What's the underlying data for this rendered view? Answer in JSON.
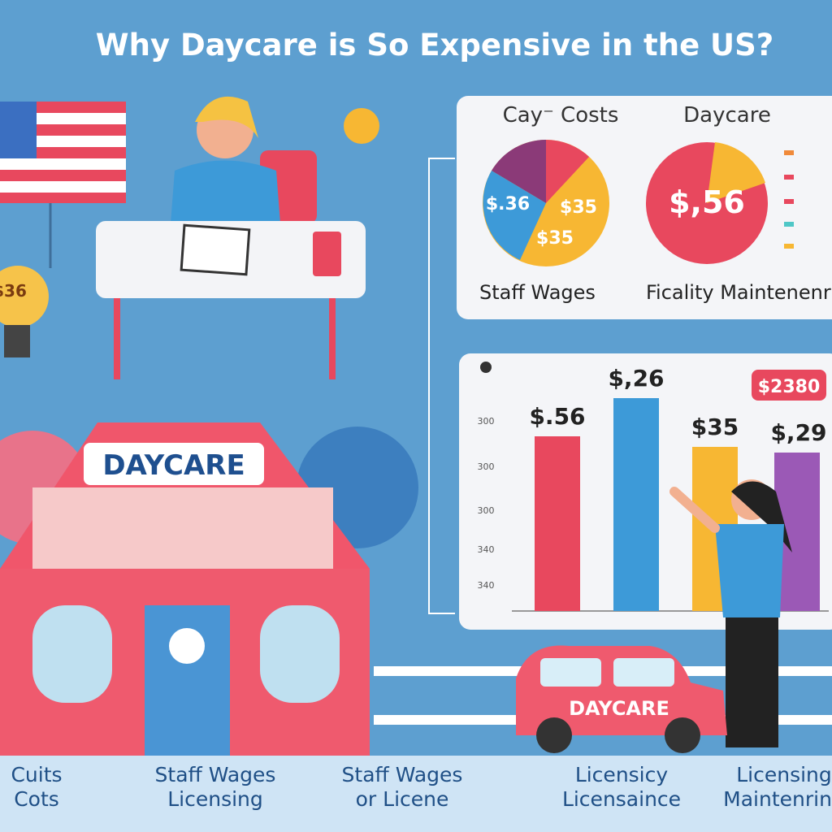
{
  "header": {
    "title": "Why Daycare is So Expensive in the US?"
  },
  "pie_panel": {
    "headings": [
      "Cay⁻ Costs",
      "Daycare"
    ],
    "pie_labels": [
      "$.36",
      "$35",
      "$35",
      "$,56"
    ],
    "captions": [
      "Staff Wages",
      "Ficality Maintenenr"
    ]
  },
  "bar_panel": {
    "axis_labels": [
      "300",
      "300",
      "300",
      "340",
      "340"
    ],
    "bar_labels": [
      "$.56",
      "$,26",
      "$35",
      "$,29"
    ],
    "callout": "$2380"
  },
  "illustration": {
    "bulb_label": "$36",
    "house_sign": "DAYCARE",
    "car_sign": "DAYCARE"
  },
  "footer": {
    "labels": [
      [
        "Cuits",
        "Cots"
      ],
      [
        "Staff Wages",
        "Licensing"
      ],
      [
        "Staff Wages",
        "or Licene"
      ],
      [
        "Licensicy",
        "Licensaince"
      ],
      [
        "Licensing",
        "Maintenring"
      ]
    ]
  }
}
